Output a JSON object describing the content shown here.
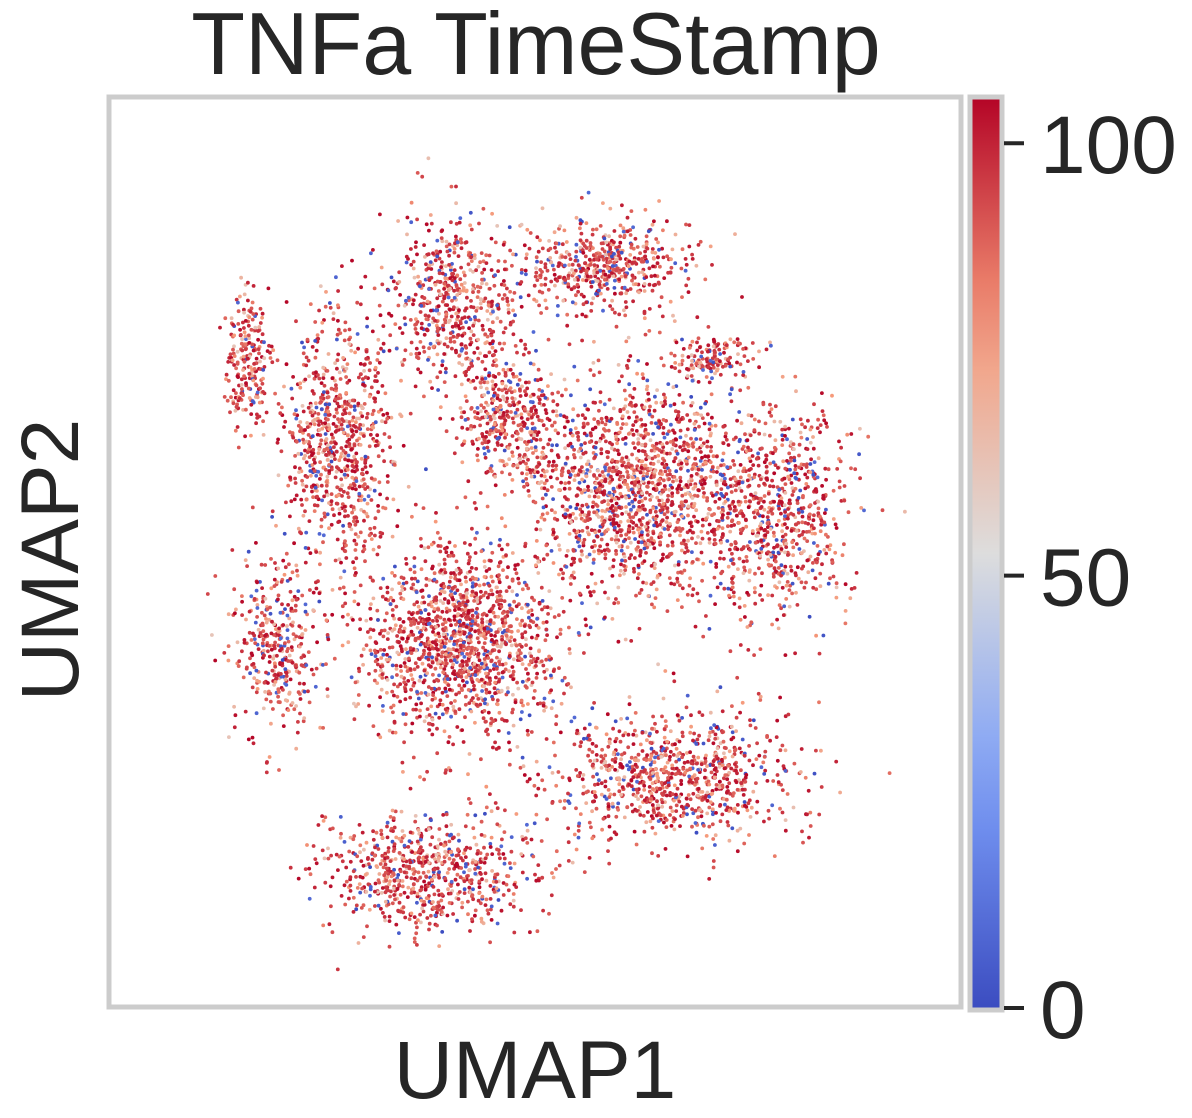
{
  "chart_data": {
    "type": "scatter",
    "title": "TNFa TimeStamp",
    "xlabel": "UMAP1",
    "ylabel": "UMAP2",
    "xticks": [],
    "yticks": [],
    "grid": false,
    "colorbar": {
      "colormap": "coolwarm",
      "range": [
        0,
        105
      ],
      "ticks": [
        0,
        50,
        100
      ],
      "tick_labels": [
        "0",
        "50",
        "100"
      ],
      "colors": {
        "low": "#3b4cc0",
        "mid": "#dddddd",
        "high": "#b40426"
      },
      "placement": "right"
    },
    "point_color_mix": {
      "high_0_100_fraction": 0.62,
      "mid_fraction": 0.28,
      "low_fraction": 0.1
    },
    "clusters": [
      {
        "name": "",
        "center": [
          3.6,
          8.7
        ],
        "spread": [
          0.9,
          1.1
        ],
        "count": 560
      },
      {
        "name": "",
        "center": [
          6.2,
          9.2
        ],
        "spread": [
          1.2,
          0.6
        ],
        "count": 520
      },
      {
        "name": "",
        "center": [
          8.1,
          7.8
        ],
        "spread": [
          0.6,
          0.4
        ],
        "count": 140
      },
      {
        "name": "",
        "center": [
          1.5,
          6.5
        ],
        "spread": [
          0.8,
          1.6
        ],
        "count": 780
      },
      {
        "name": "",
        "center": [
          -0.1,
          7.8
        ],
        "spread": [
          0.3,
          0.8
        ],
        "count": 220
      },
      {
        "name": "",
        "center": [
          4.5,
          6.9
        ],
        "spread": [
          0.7,
          0.8
        ],
        "count": 380
      },
      {
        "name": "",
        "center": [
          6.8,
          5.8
        ],
        "spread": [
          1.6,
          1.3
        ],
        "count": 1500
      },
      {
        "name": "",
        "center": [
          9.3,
          5.4
        ],
        "spread": [
          1.0,
          1.4
        ],
        "count": 700
      },
      {
        "name": "",
        "center": [
          0.4,
          3.3
        ],
        "spread": [
          0.6,
          1.1
        ],
        "count": 360
      },
      {
        "name": "",
        "center": [
          3.6,
          3.4
        ],
        "spread": [
          1.5,
          1.2
        ],
        "count": 1450
      },
      {
        "name": "",
        "center": [
          7.4,
          1.3
        ],
        "spread": [
          1.8,
          0.8
        ],
        "count": 900
      },
      {
        "name": "",
        "center": [
          3.1,
          -0.2
        ],
        "spread": [
          1.5,
          0.7
        ],
        "count": 720
      }
    ],
    "xlim": [
      -2.5,
      12.5
    ],
    "ylim": [
      -2.2,
      11.8
    ]
  }
}
